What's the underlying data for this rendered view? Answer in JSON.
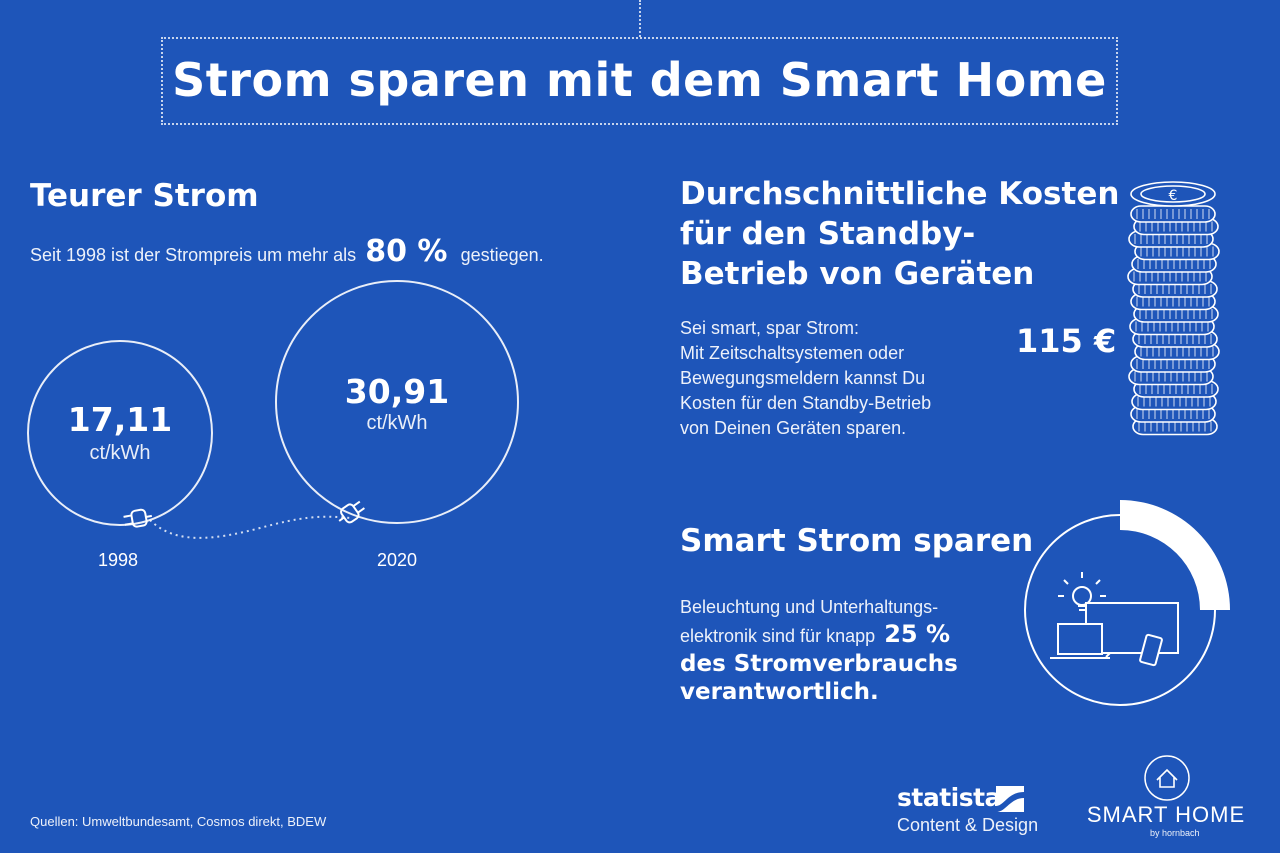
{
  "title": "Strom sparen mit dem Smart Home",
  "left": {
    "heading": "Teurer Strom",
    "intro_before": "Seit 1998 ist der Strompreis um mehr als",
    "increase": "80 %",
    "intro_after": "gestiegen.",
    "circles": [
      {
        "value": "17,11",
        "unit": "ct/kWh",
        "year": "1998"
      },
      {
        "value": "30,91",
        "unit": "ct/kWh",
        "year": "2020"
      }
    ]
  },
  "standby": {
    "heading_lines": [
      "Durchschnittliche Kosten",
      "für den Standby-",
      "Betrieb von Geräten"
    ],
    "body_lines": [
      "Sei smart, spar Strom:",
      "Mit Zeitschaltsystemen oder",
      "Bewegungsmeldern kannst Du",
      "Kosten für den Standby-Betrieb",
      "von Deinen Geräten sparen."
    ],
    "amount": "115 €",
    "coin_symbol": "€"
  },
  "smart": {
    "heading": "Smart Strom sparen",
    "line1": "Beleuchtung und Unterhaltungs-",
    "line2": "elektronik sind für knapp",
    "percent": "25 %",
    "line3": "des Stromverbrauchs",
    "line4": "verantwortlich.",
    "ring_share": 0.25
  },
  "footer": {
    "sources": "Quellen: Umweltbundesamt, Cosmos direkt, BDEW",
    "statista_name": "statista",
    "statista_sub": "Content & Design",
    "smarthome_name": "SMART HOME",
    "smarthome_sub": "by hornbach"
  },
  "colors": {
    "background": "#1e55b9",
    "foreground": "#ffffff"
  }
}
